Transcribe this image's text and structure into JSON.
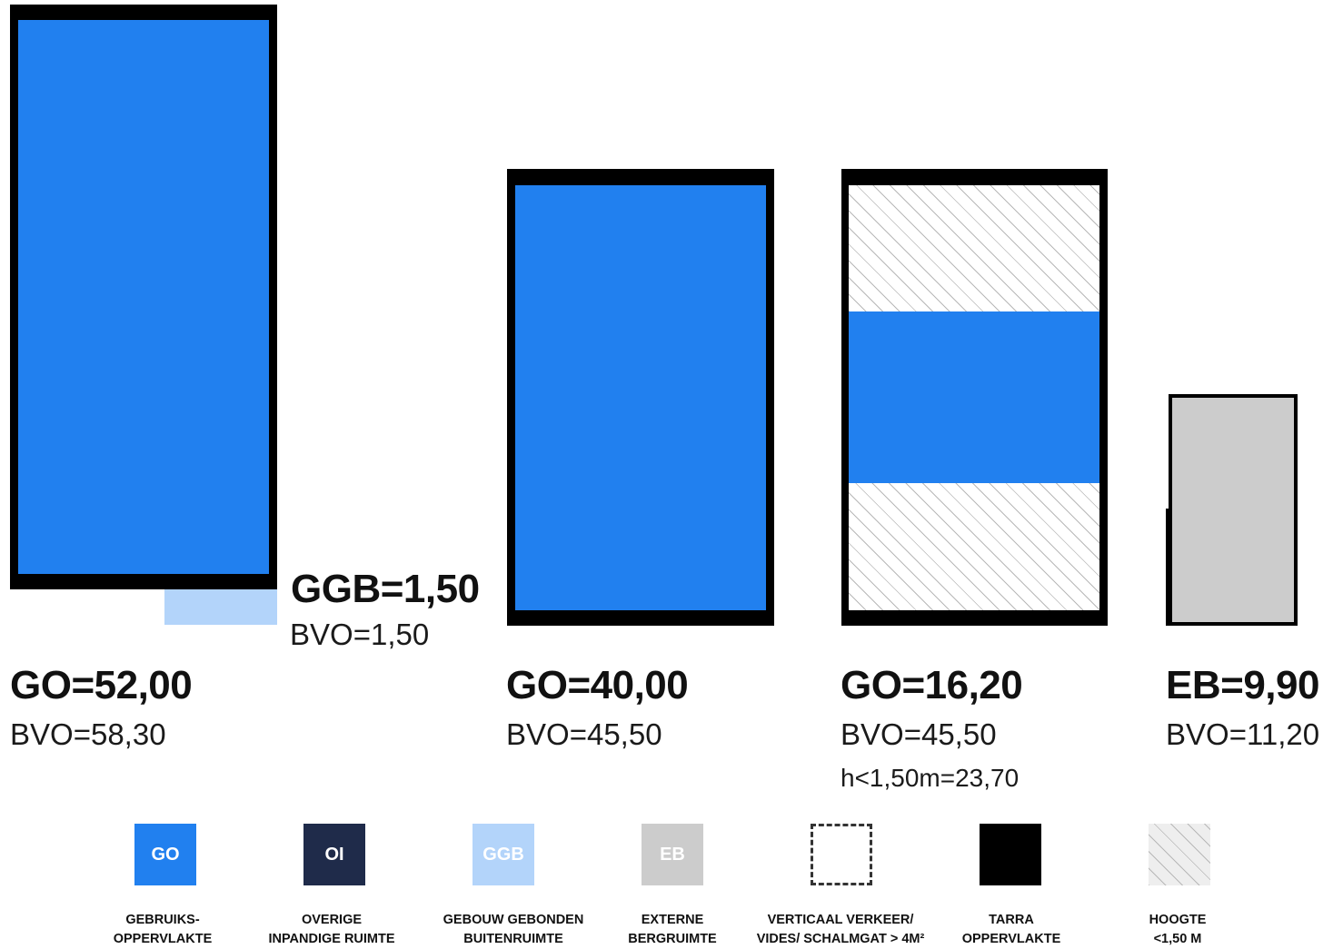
{
  "blocks": [
    {
      "main": "GO=52,00",
      "sub": "BVO=58,30"
    },
    {
      "main": "GO=40,00",
      "sub": "BVO=45,50"
    },
    {
      "main": "GO=16,20",
      "sub": "BVO=45,50",
      "extra": "h<1,50m=23,70"
    },
    {
      "main": "EB=9,90",
      "sub": "BVO=11,20"
    }
  ],
  "ggb": {
    "main": "GGB=1,50",
    "sub": "BVO=1,50"
  },
  "legend": [
    {
      "code": "GO",
      "line1": "GEBRUIKS-",
      "line2": "OPPERVLAKTE",
      "color": "#2180ef",
      "icon": "go-swatch"
    },
    {
      "code": "OI",
      "line1": "OVERIGE",
      "line2": "INPANDIGE RUIMTE",
      "color": "#1f2b4a",
      "icon": "oi-swatch"
    },
    {
      "code": "GGB",
      "line1": "GEBOUW GEBONDEN",
      "line2": "BUITENRUIMTE",
      "color": "#b3d4fa",
      "icon": "ggb-swatch"
    },
    {
      "code": "EB",
      "line1": "EXTERNE",
      "line2": "BERGRUIMTE",
      "color": "#cccccc",
      "icon": "eb-swatch"
    },
    {
      "code": "",
      "line1": "VERTICAAL VERKEER/",
      "line2": "VIDES/ SCHALMGAT > 4M²",
      "color": "#ffffff",
      "icon": "dashed-swatch"
    },
    {
      "code": "",
      "line1": "TARRA",
      "line2": "OPPERVLAKTE",
      "color": "#000000",
      "icon": "tarra-swatch"
    },
    {
      "code": "",
      "line1": "HOOGTE",
      "line2": "<1,50 M",
      "color": "#e6e6e6",
      "icon": "hatch-swatch"
    }
  ]
}
